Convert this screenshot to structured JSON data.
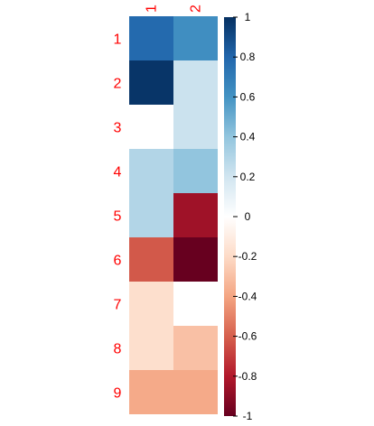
{
  "chart_data": {
    "type": "heatmap",
    "title": "",
    "columns": [
      "1",
      "2"
    ],
    "rows": [
      "1",
      "2",
      "3",
      "4",
      "5",
      "6",
      "7",
      "8",
      "9"
    ],
    "values": [
      [
        0.78,
        0.62
      ],
      [
        0.98,
        0.22
      ],
      [
        0.0,
        0.22
      ],
      [
        0.3,
        0.4
      ],
      [
        0.3,
        -0.85
      ],
      [
        -0.62,
        -1.0
      ],
      [
        -0.18,
        0.0
      ],
      [
        -0.18,
        -0.3
      ],
      [
        -0.38,
        -0.38
      ]
    ],
    "colorbar": {
      "ticks": [
        "1",
        "0.8",
        "0.6",
        "0.4",
        "0.2",
        "0",
        "-0.2",
        "-0.4",
        "-0.6",
        "-0.8",
        "-1"
      ],
      "range": [
        -1,
        1
      ],
      "colors": [
        "#67001F",
        "#B2182B",
        "#D6604D",
        "#F4A582",
        "#FDDBC7",
        "#FFFFFF",
        "#D1E5F0",
        "#92C5DE",
        "#4393C3",
        "#2166AC",
        "#053061"
      ]
    },
    "label_color": "#FF0000"
  }
}
